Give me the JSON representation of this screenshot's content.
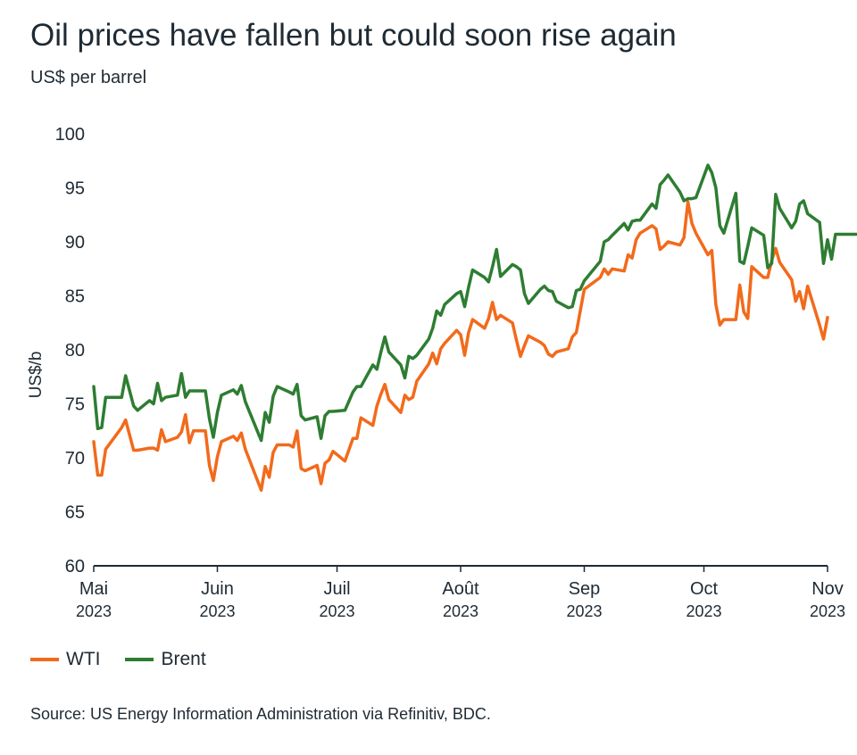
{
  "header": {
    "title": "Oil prices have fallen but could soon rise again",
    "subtitle": "US$ per barrel"
  },
  "footer": {
    "source": "Source: US Energy Information Administration via Refinitiv, BDC."
  },
  "colors": {
    "wti": "#f26a1b",
    "brent": "#2e7d32",
    "axis": "#1f2a33"
  },
  "chart_data": {
    "type": "line",
    "title": "Oil prices have fallen but could soon rise again",
    "subtitle": "US$ per barrel",
    "ylabel": "US$/b",
    "xlabel": "",
    "ylim": [
      60,
      100
    ],
    "yticks": [
      60,
      65,
      70,
      75,
      80,
      85,
      90,
      95,
      100
    ],
    "xlim": [
      "2023-05-01",
      "2023-11-01"
    ],
    "xticks": [
      {
        "date": "2023-05-01",
        "month": "Mai",
        "year": "2023"
      },
      {
        "date": "2023-06-01",
        "month": "Juin",
        "year": "2023"
      },
      {
        "date": "2023-07-01",
        "month": "Juil",
        "year": "2023"
      },
      {
        "date": "2023-08-01",
        "month": "Août",
        "year": "2023"
      },
      {
        "date": "2023-09-01",
        "month": "Sep",
        "year": "2023"
      },
      {
        "date": "2023-10-01",
        "month": "Oct",
        "year": "2023"
      },
      {
        "date": "2023-11-01",
        "month": "Nov",
        "year": "2023"
      }
    ],
    "grid": false,
    "legend_position": "bottom-left",
    "series": [
      {
        "name": "WTI",
        "color": "#f26a1b",
        "points": [
          [
            "2023-05-01",
            71.5
          ],
          [
            "2023-05-02",
            68.4
          ],
          [
            "2023-05-03",
            68.4
          ],
          [
            "2023-05-04",
            70.8
          ],
          [
            "2023-05-08",
            72.8
          ],
          [
            "2023-05-09",
            73.5
          ],
          [
            "2023-05-11",
            70.7
          ],
          [
            "2023-05-12",
            70.7
          ],
          [
            "2023-05-15",
            70.9
          ],
          [
            "2023-05-16",
            70.9
          ],
          [
            "2023-05-17",
            70.7
          ],
          [
            "2023-05-18",
            72.6
          ],
          [
            "2023-05-19",
            71.5
          ],
          [
            "2023-05-22",
            71.9
          ],
          [
            "2023-05-23",
            72.4
          ],
          [
            "2023-05-24",
            74.0
          ],
          [
            "2023-05-25",
            71.4
          ],
          [
            "2023-05-26",
            72.5
          ],
          [
            "2023-05-29",
            72.5
          ],
          [
            "2023-05-30",
            69.3
          ],
          [
            "2023-05-31",
            67.9
          ],
          [
            "2023-06-01",
            70.1
          ],
          [
            "2023-06-02",
            71.5
          ],
          [
            "2023-06-05",
            72.0
          ],
          [
            "2023-06-06",
            71.6
          ],
          [
            "2023-06-07",
            72.3
          ],
          [
            "2023-06-08",
            70.8
          ],
          [
            "2023-06-12",
            67.0
          ],
          [
            "2023-06-13",
            69.2
          ],
          [
            "2023-06-14",
            68.2
          ],
          [
            "2023-06-15",
            70.5
          ],
          [
            "2023-06-16",
            71.2
          ],
          [
            "2023-06-19",
            71.2
          ],
          [
            "2023-06-20",
            71.0
          ],
          [
            "2023-06-21",
            72.5
          ],
          [
            "2023-06-22",
            69.0
          ],
          [
            "2023-06-23",
            68.8
          ],
          [
            "2023-06-26",
            69.3
          ],
          [
            "2023-06-27",
            67.6
          ],
          [
            "2023-06-28",
            69.5
          ],
          [
            "2023-06-29",
            69.8
          ],
          [
            "2023-06-30",
            70.6
          ],
          [
            "2023-07-03",
            69.7
          ],
          [
            "2023-07-05",
            71.8
          ],
          [
            "2023-07-06",
            71.8
          ],
          [
            "2023-07-07",
            73.7
          ],
          [
            "2023-07-10",
            73.0
          ],
          [
            "2023-07-11",
            74.8
          ],
          [
            "2023-07-12",
            75.9
          ],
          [
            "2023-07-13",
            76.8
          ],
          [
            "2023-07-14",
            75.4
          ],
          [
            "2023-07-17",
            74.2
          ],
          [
            "2023-07-18",
            75.8
          ],
          [
            "2023-07-19",
            75.4
          ],
          [
            "2023-07-20",
            75.6
          ],
          [
            "2023-07-21",
            77.1
          ],
          [
            "2023-07-24",
            78.7
          ],
          [
            "2023-07-25",
            79.7
          ],
          [
            "2023-07-26",
            78.7
          ],
          [
            "2023-07-27",
            80.1
          ],
          [
            "2023-07-28",
            80.6
          ],
          [
            "2023-07-31",
            81.8
          ],
          [
            "2023-08-01",
            81.4
          ],
          [
            "2023-08-02",
            79.5
          ],
          [
            "2023-08-03",
            81.6
          ],
          [
            "2023-08-04",
            82.8
          ],
          [
            "2023-08-07",
            82.0
          ],
          [
            "2023-08-08",
            82.9
          ],
          [
            "2023-08-09",
            84.4
          ],
          [
            "2023-08-10",
            82.8
          ],
          [
            "2023-08-11",
            83.2
          ],
          [
            "2023-08-14",
            82.5
          ],
          [
            "2023-08-15",
            80.9
          ],
          [
            "2023-08-16",
            79.4
          ],
          [
            "2023-08-17",
            80.4
          ],
          [
            "2023-08-18",
            81.3
          ],
          [
            "2023-08-21",
            80.7
          ],
          [
            "2023-08-22",
            80.4
          ],
          [
            "2023-08-23",
            79.6
          ],
          [
            "2023-08-24",
            79.4
          ],
          [
            "2023-08-25",
            79.8
          ],
          [
            "2023-08-28",
            80.1
          ],
          [
            "2023-08-29",
            81.2
          ],
          [
            "2023-08-30",
            81.6
          ],
          [
            "2023-08-31",
            83.6
          ],
          [
            "2023-09-01",
            85.6
          ],
          [
            "2023-09-05",
            86.7
          ],
          [
            "2023-09-06",
            87.5
          ],
          [
            "2023-09-07",
            87.0
          ],
          [
            "2023-09-08",
            87.5
          ],
          [
            "2023-09-11",
            87.3
          ],
          [
            "2023-09-12",
            88.8
          ],
          [
            "2023-09-13",
            88.5
          ],
          [
            "2023-09-14",
            90.2
          ],
          [
            "2023-09-15",
            90.8
          ],
          [
            "2023-09-18",
            91.5
          ],
          [
            "2023-09-19",
            91.2
          ],
          [
            "2023-09-20",
            89.3
          ],
          [
            "2023-09-21",
            89.6
          ],
          [
            "2023-09-22",
            90.0
          ],
          [
            "2023-09-25",
            89.7
          ],
          [
            "2023-09-26",
            90.4
          ],
          [
            "2023-09-27",
            93.7
          ],
          [
            "2023-09-28",
            91.7
          ],
          [
            "2023-09-29",
            90.8
          ],
          [
            "2023-10-02",
            88.8
          ],
          [
            "2023-10-03",
            89.2
          ],
          [
            "2023-10-04",
            84.2
          ],
          [
            "2023-10-05",
            82.3
          ],
          [
            "2023-10-06",
            82.8
          ],
          [
            "2023-10-09",
            82.8
          ],
          [
            "2023-10-10",
            86.0
          ],
          [
            "2023-10-11",
            83.5
          ],
          [
            "2023-10-12",
            82.9
          ],
          [
            "2023-10-13",
            87.7
          ],
          [
            "2023-10-16",
            86.7
          ],
          [
            "2023-10-17",
            86.7
          ],
          [
            "2023-10-18",
            88.3
          ],
          [
            "2023-10-19",
            89.4
          ],
          [
            "2023-10-20",
            88.1
          ],
          [
            "2023-10-23",
            86.5
          ],
          [
            "2023-10-24",
            84.5
          ],
          [
            "2023-10-25",
            85.4
          ],
          [
            "2023-10-26",
            83.8
          ],
          [
            "2023-10-27",
            85.9
          ],
          [
            "2023-10-30",
            82.3
          ],
          [
            "2023-10-31",
            81.0
          ],
          [
            "2023-11-01",
            83.0
          ]
        ]
      },
      {
        "name": "Brent",
        "color": "#2e7d32",
        "points": [
          [
            "2023-05-01",
            76.6
          ],
          [
            "2023-05-02",
            72.7
          ],
          [
            "2023-05-03",
            72.8
          ],
          [
            "2023-05-04",
            75.6
          ],
          [
            "2023-05-08",
            75.6
          ],
          [
            "2023-05-09",
            77.6
          ],
          [
            "2023-05-11",
            74.8
          ],
          [
            "2023-05-12",
            74.4
          ],
          [
            "2023-05-15",
            75.3
          ],
          [
            "2023-05-16",
            75.0
          ],
          [
            "2023-05-17",
            76.9
          ],
          [
            "2023-05-18",
            75.3
          ],
          [
            "2023-05-19",
            75.6
          ],
          [
            "2023-05-22",
            75.8
          ],
          [
            "2023-05-23",
            77.8
          ],
          [
            "2023-05-24",
            75.6
          ],
          [
            "2023-05-25",
            76.2
          ],
          [
            "2023-05-26",
            76.2
          ],
          [
            "2023-05-29",
            76.2
          ],
          [
            "2023-05-30",
            73.6
          ],
          [
            "2023-05-31",
            71.9
          ],
          [
            "2023-06-01",
            74.2
          ],
          [
            "2023-06-02",
            75.8
          ],
          [
            "2023-06-05",
            76.3
          ],
          [
            "2023-06-06",
            75.9
          ],
          [
            "2023-06-07",
            76.7
          ],
          [
            "2023-06-08",
            75.2
          ],
          [
            "2023-06-12",
            71.6
          ],
          [
            "2023-06-13",
            74.2
          ],
          [
            "2023-06-14",
            73.3
          ],
          [
            "2023-06-15",
            75.7
          ],
          [
            "2023-06-16",
            76.6
          ],
          [
            "2023-06-19",
            76.1
          ],
          [
            "2023-06-20",
            75.9
          ],
          [
            "2023-06-21",
            76.8
          ],
          [
            "2023-06-22",
            73.9
          ],
          [
            "2023-06-23",
            73.5
          ],
          [
            "2023-06-26",
            73.8
          ],
          [
            "2023-06-27",
            71.8
          ],
          [
            "2023-06-28",
            73.9
          ],
          [
            "2023-06-29",
            74.3
          ],
          [
            "2023-06-30",
            74.3
          ],
          [
            "2023-07-03",
            74.4
          ],
          [
            "2023-07-05",
            76.1
          ],
          [
            "2023-07-06",
            76.6
          ],
          [
            "2023-07-07",
            76.6
          ],
          [
            "2023-07-10",
            78.6
          ],
          [
            "2023-07-11",
            78.2
          ],
          [
            "2023-07-12",
            79.8
          ],
          [
            "2023-07-13",
            81.2
          ],
          [
            "2023-07-14",
            79.8
          ],
          [
            "2023-07-17",
            78.6
          ],
          [
            "2023-07-18",
            77.4
          ],
          [
            "2023-07-19",
            79.4
          ],
          [
            "2023-07-20",
            79.2
          ],
          [
            "2023-07-21",
            79.5
          ],
          [
            "2023-07-24",
            81.0
          ],
          [
            "2023-07-25",
            82.0
          ],
          [
            "2023-07-26",
            83.6
          ],
          [
            "2023-07-27",
            83.2
          ],
          [
            "2023-07-28",
            84.2
          ],
          [
            "2023-07-31",
            85.2
          ],
          [
            "2023-08-01",
            85.4
          ],
          [
            "2023-08-02",
            84.0
          ],
          [
            "2023-08-03",
            85.8
          ],
          [
            "2023-08-04",
            87.4
          ],
          [
            "2023-08-07",
            86.7
          ],
          [
            "2023-08-08",
            86.3
          ],
          [
            "2023-08-09",
            87.7
          ],
          [
            "2023-08-10",
            89.3
          ],
          [
            "2023-08-11",
            86.8
          ],
          [
            "2023-08-14",
            87.9
          ],
          [
            "2023-08-15",
            87.7
          ],
          [
            "2023-08-16",
            87.4
          ],
          [
            "2023-08-17",
            85.2
          ],
          [
            "2023-08-18",
            84.3
          ],
          [
            "2023-08-21",
            85.6
          ],
          [
            "2023-08-22",
            85.9
          ],
          [
            "2023-08-23",
            85.5
          ],
          [
            "2023-08-24",
            85.4
          ],
          [
            "2023-08-25",
            84.5
          ],
          [
            "2023-08-28",
            83.9
          ],
          [
            "2023-08-29",
            84.0
          ],
          [
            "2023-08-30",
            85.5
          ],
          [
            "2023-08-31",
            85.6
          ],
          [
            "2023-09-01",
            86.4
          ],
          [
            "2023-09-05",
            88.2
          ],
          [
            "2023-09-06",
            90.0
          ],
          [
            "2023-09-07",
            90.2
          ],
          [
            "2023-09-08",
            90.6
          ],
          [
            "2023-09-11",
            91.7
          ],
          [
            "2023-09-12",
            91.1
          ],
          [
            "2023-09-13",
            91.9
          ],
          [
            "2023-09-14",
            92.0
          ],
          [
            "2023-09-15",
            92.0
          ],
          [
            "2023-09-18",
            93.5
          ],
          [
            "2023-09-19",
            93.1
          ],
          [
            "2023-09-20",
            95.3
          ],
          [
            "2023-09-21",
            95.7
          ],
          [
            "2023-09-22",
            96.2
          ],
          [
            "2023-09-25",
            94.6
          ],
          [
            "2023-09-26",
            93.8
          ],
          [
            "2023-09-27",
            94.0
          ],
          [
            "2023-09-28",
            94.0
          ],
          [
            "2023-09-29",
            94.1
          ],
          [
            "2023-10-02",
            97.1
          ],
          [
            "2023-10-03",
            96.4
          ],
          [
            "2023-10-04",
            95.0
          ],
          [
            "2023-10-05",
            91.5
          ],
          [
            "2023-10-06",
            90.8
          ],
          [
            "2023-10-09",
            94.5
          ],
          [
            "2023-10-10",
            88.2
          ],
          [
            "2023-10-11",
            88.0
          ],
          [
            "2023-10-12",
            89.6
          ],
          [
            "2023-10-13",
            91.3
          ],
          [
            "2023-10-16",
            90.6
          ],
          [
            "2023-10-17",
            87.6
          ],
          [
            "2023-10-18",
            88.0
          ],
          [
            "2023-10-19",
            94.4
          ],
          [
            "2023-10-20",
            93.1
          ],
          [
            "2023-10-23",
            91.3
          ],
          [
            "2023-10-24",
            91.9
          ],
          [
            "2023-10-25",
            93.5
          ],
          [
            "2023-10-26",
            93.8
          ],
          [
            "2023-10-27",
            92.6
          ],
          [
            "2023-10-30",
            91.8
          ],
          [
            "2023-10-31",
            88.0
          ],
          [
            "2023-11-01",
            90.2
          ],
          [
            "2023-11-02",
            88.4
          ],
          [
            "2023-11-03",
            90.7
          ],
          [
            "2023-11-06",
            90.7
          ],
          [
            "2023-11-07",
            90.7
          ],
          [
            "2023-11-08",
            90.7
          ],
          [
            "2023-11-09",
            90.7
          ],
          [
            "2023-11-10",
            90.7
          ]
        ]
      }
    ]
  }
}
